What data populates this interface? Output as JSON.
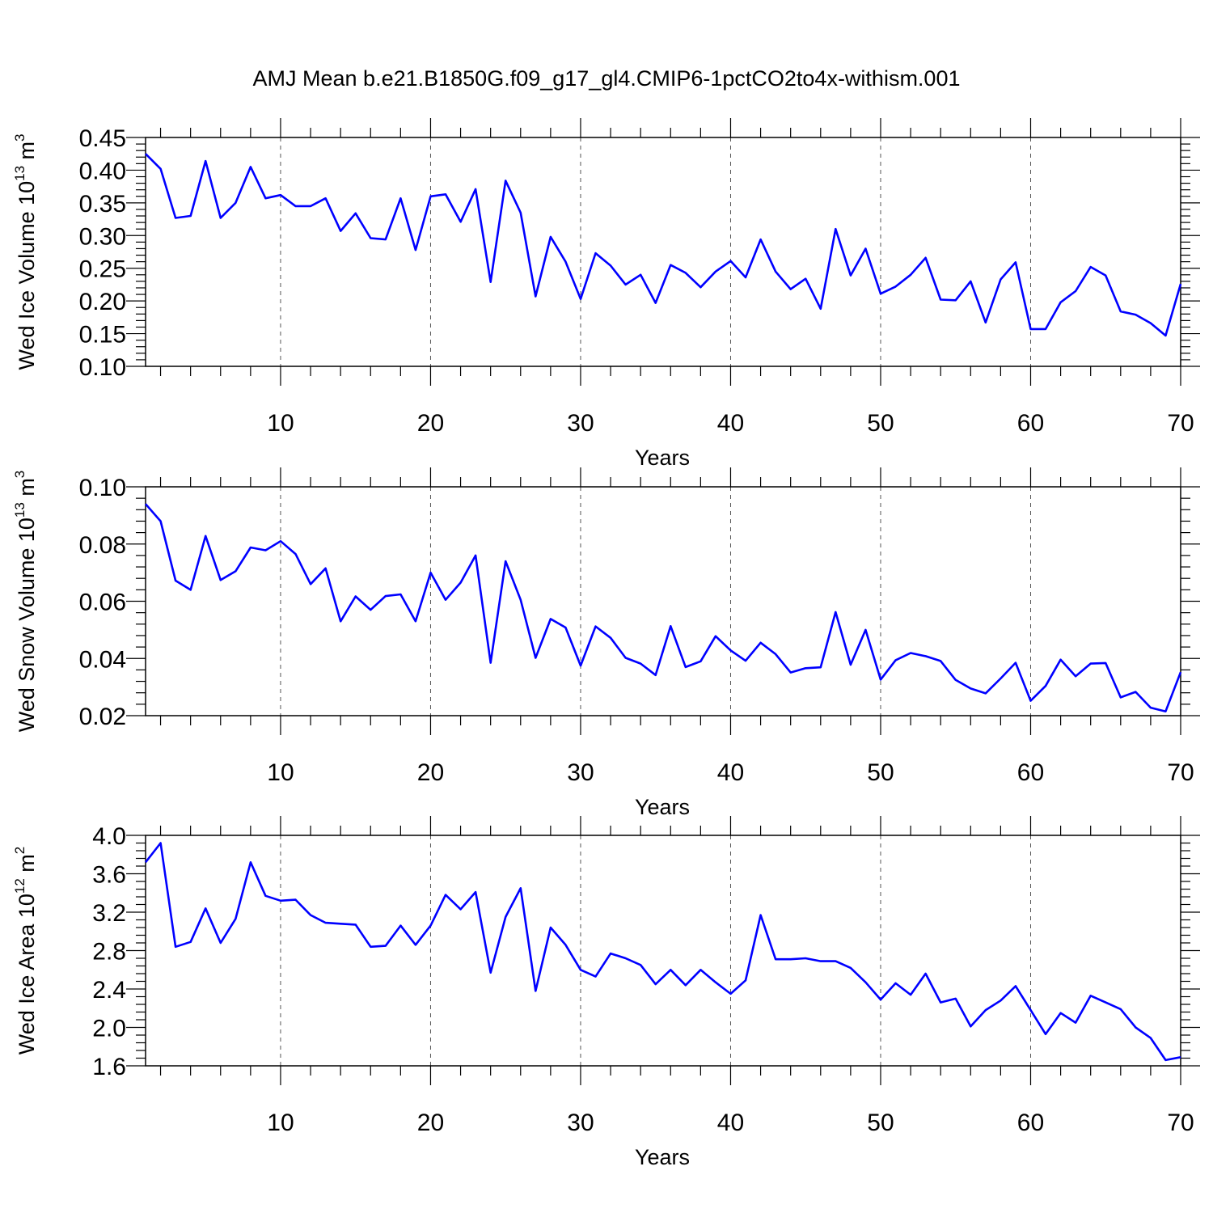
{
  "figure": {
    "title": "AMJ Mean b.e21.B1850G.f09_g17_gl4.CMIP6-1pctCO2to4x-withism.001",
    "line_color": "#0000ff"
  },
  "chart_data": [
    {
      "type": "line",
      "xlabel": "Years",
      "ylabel_main": "Wed Ice Volume 10",
      "ylabel_exp": "13",
      "ylabel_unit": " m",
      "ylabel_unit_exp": "3",
      "xlim": [
        1,
        70
      ],
      "ylim": [
        0.1,
        0.45
      ],
      "xticks": [
        10,
        20,
        30,
        40,
        50,
        60,
        70
      ],
      "yticks": [
        0.1,
        0.15,
        0.2,
        0.25,
        0.3,
        0.35,
        0.4,
        0.45
      ],
      "ytick_labels": [
        "0.10",
        "0.15",
        "0.20",
        "0.25",
        "0.30",
        "0.35",
        "0.40",
        "0.45"
      ],
      "grid": "vertical dashed at major x ticks",
      "x": [
        1,
        2,
        3,
        4,
        5,
        6,
        7,
        8,
        9,
        10,
        11,
        12,
        13,
        14,
        15,
        16,
        17,
        18,
        19,
        20,
        21,
        22,
        23,
        24,
        25,
        26,
        27,
        28,
        29,
        30,
        31,
        32,
        33,
        34,
        35,
        36,
        37,
        38,
        39,
        40,
        41,
        42,
        43,
        44,
        45,
        46,
        47,
        48,
        49,
        50,
        51,
        52,
        53,
        54,
        55,
        56,
        57,
        58,
        59,
        60,
        61,
        62,
        63,
        64,
        65,
        66,
        67,
        68,
        69,
        70
      ],
      "values": [
        0.425,
        0.402,
        0.327,
        0.33,
        0.414,
        0.327,
        0.35,
        0.405,
        0.357,
        0.362,
        0.345,
        0.345,
        0.357,
        0.307,
        0.334,
        0.296,
        0.294,
        0.357,
        0.278,
        0.36,
        0.363,
        0.321,
        0.371,
        0.229,
        0.384,
        0.335,
        0.207,
        0.298,
        0.26,
        0.203,
        0.273,
        0.254,
        0.225,
        0.24,
        0.197,
        0.255,
        0.243,
        0.221,
        0.245,
        0.261,
        0.236,
        0.294,
        0.245,
        0.218,
        0.234,
        0.188,
        0.31,
        0.239,
        0.28,
        0.211,
        0.222,
        0.24,
        0.266,
        0.202,
        0.201,
        0.23,
        0.167,
        0.233,
        0.259,
        0.157,
        0.157,
        0.198,
        0.215,
        0.252,
        0.239,
        0.184,
        0.179,
        0.166,
        0.147,
        0.226
      ]
    },
    {
      "type": "line",
      "xlabel": "Years",
      "ylabel_main": "Wed Snow Volume 10",
      "ylabel_exp": "13",
      "ylabel_unit": " m",
      "ylabel_unit_exp": "3",
      "xlim": [
        1,
        70
      ],
      "ylim": [
        0.02,
        0.1
      ],
      "xticks": [
        10,
        20,
        30,
        40,
        50,
        60,
        70
      ],
      "yticks": [
        0.02,
        0.04,
        0.06,
        0.08,
        0.1
      ],
      "ytick_labels": [
        "0.02",
        "0.04",
        "0.06",
        "0.08",
        "0.10"
      ],
      "grid": "vertical dashed at major x ticks",
      "x": [
        1,
        2,
        3,
        4,
        5,
        6,
        7,
        8,
        9,
        10,
        11,
        12,
        13,
        14,
        15,
        16,
        17,
        18,
        19,
        20,
        21,
        22,
        23,
        24,
        25,
        26,
        27,
        28,
        29,
        30,
        31,
        32,
        33,
        34,
        35,
        36,
        37,
        38,
        39,
        40,
        41,
        42,
        43,
        44,
        45,
        46,
        47,
        48,
        49,
        50,
        51,
        52,
        53,
        54,
        55,
        56,
        57,
        58,
        59,
        60,
        61,
        62,
        63,
        64,
        65,
        66,
        67,
        68,
        69,
        70
      ],
      "values": [
        0.094,
        0.088,
        0.0672,
        0.064,
        0.0828,
        0.0674,
        0.0705,
        0.0788,
        0.0778,
        0.081,
        0.0765,
        0.066,
        0.0715,
        0.053,
        0.0617,
        0.057,
        0.0618,
        0.0624,
        0.053,
        0.07,
        0.0605,
        0.0665,
        0.076,
        0.0385,
        0.074,
        0.0605,
        0.0402,
        0.0538,
        0.0508,
        0.0375,
        0.0512,
        0.0472,
        0.0402,
        0.0382,
        0.0342,
        0.0513,
        0.037,
        0.039,
        0.0478,
        0.0428,
        0.0392,
        0.0455,
        0.0415,
        0.0351,
        0.0366,
        0.0369,
        0.0562,
        0.0378,
        0.05,
        0.0326,
        0.0394,
        0.0419,
        0.0408,
        0.0391,
        0.0325,
        0.0295,
        0.0278,
        0.033,
        0.0385,
        0.0252,
        0.0304,
        0.0396,
        0.0338,
        0.0382,
        0.0384,
        0.0264,
        0.0283,
        0.0228,
        0.0215,
        0.0352
      ]
    },
    {
      "type": "line",
      "xlabel": "Years",
      "ylabel_main": "Wed Ice Area 10",
      "ylabel_exp": "12",
      "ylabel_unit": " m",
      "ylabel_unit_exp": "2",
      "xlim": [
        1,
        70
      ],
      "ylim": [
        1.6,
        4.0
      ],
      "xticks": [
        10,
        20,
        30,
        40,
        50,
        60,
        70
      ],
      "yticks": [
        1.6,
        2.0,
        2.4,
        2.8,
        3.2,
        3.6,
        4.0
      ],
      "ytick_labels": [
        "1.6",
        "2.0",
        "2.4",
        "2.8",
        "3.2",
        "3.6",
        "4.0"
      ],
      "grid": "vertical dashed at major x ticks",
      "x": [
        1,
        2,
        3,
        4,
        5,
        6,
        7,
        8,
        9,
        10,
        11,
        12,
        13,
        14,
        15,
        16,
        17,
        18,
        19,
        20,
        21,
        22,
        23,
        24,
        25,
        26,
        27,
        28,
        29,
        30,
        31,
        32,
        33,
        34,
        35,
        36,
        37,
        38,
        39,
        40,
        41,
        42,
        43,
        44,
        45,
        46,
        47,
        48,
        49,
        50,
        51,
        52,
        53,
        54,
        55,
        56,
        57,
        58,
        59,
        60,
        61,
        62,
        63,
        64,
        65,
        66,
        67,
        68,
        69,
        70
      ],
      "values": [
        3.72,
        3.92,
        2.84,
        2.89,
        3.24,
        2.88,
        3.13,
        3.72,
        3.37,
        3.32,
        3.33,
        3.17,
        3.09,
        3.08,
        3.07,
        2.84,
        2.85,
        3.06,
        2.86,
        3.06,
        3.38,
        3.23,
        3.41,
        2.57,
        3.15,
        3.45,
        2.38,
        3.04,
        2.86,
        2.6,
        2.53,
        2.77,
        2.72,
        2.65,
        2.45,
        2.6,
        2.44,
        2.6,
        2.47,
        2.35,
        2.49,
        3.17,
        2.71,
        2.71,
        2.72,
        2.69,
        2.69,
        2.62,
        2.47,
        2.29,
        2.46,
        2.34,
        2.56,
        2.26,
        2.3,
        2.01,
        2.18,
        2.28,
        2.43,
        2.18,
        1.93,
        2.15,
        2.05,
        2.33,
        2.26,
        2.19,
        2.0,
        1.89,
        1.66,
        1.69
      ]
    }
  ]
}
